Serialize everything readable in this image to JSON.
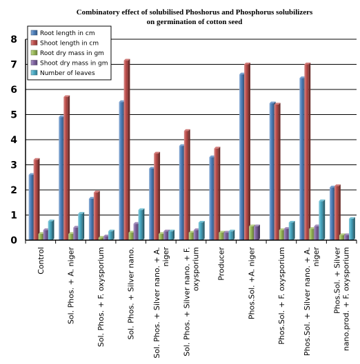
{
  "chart_data": {
    "type": "bar",
    "title": "Combinatory effect of solubilised Phoshorus and Phosphorus solubilizers",
    "subtitle": "on germination of cotton seed",
    "xlabel": "",
    "ylabel": "",
    "ylim": [
      0,
      8
    ],
    "yticks": [
      "0",
      "1",
      "2",
      "3",
      "4",
      "5",
      "6",
      "7",
      "8"
    ],
    "grid": true,
    "legend_position": "top-left",
    "categories": [
      [
        "Control"
      ],
      [
        "Sol. Phos. + A. niger"
      ],
      [
        "Sol. Phos. + F. oxysporium"
      ],
      [
        "Sol. Phos. + Silver nano."
      ],
      [
        "Sol. Phos. + Silver nano. + A.",
        "niger"
      ],
      [
        "Sol. Phos. + Silver nano. + F.",
        "oxysporium"
      ],
      [
        "Producer"
      ],
      [
        "Phos.Sol. +A. niger"
      ],
      [
        "Phos.Sol. + F. oxysporium"
      ],
      [
        "Phos.Sol. + Silver nano. + A.",
        "niger"
      ],
      [
        "Phos.Sol. + Silver",
        "nano.prod. + F. oxysporium"
      ]
    ],
    "series": [
      {
        "name": "Root length in cm",
        "color": "#4f81bd",
        "values": [
          2.6,
          4.9,
          1.65,
          5.5,
          2.85,
          3.75,
          3.3,
          6.6,
          5.45,
          6.45,
          2.1
        ]
      },
      {
        "name": "Shoot length in cm",
        "color": "#c0504d",
        "values": [
          3.2,
          5.7,
          1.9,
          7.15,
          3.45,
          4.35,
          3.65,
          7.0,
          5.4,
          7.0,
          2.15
        ]
      },
      {
        "name": "Root dry mass in gm",
        "color": "#9bbb59",
        "values": [
          0.25,
          0.25,
          0.1,
          0.3,
          0.25,
          0.3,
          0.3,
          0.55,
          0.4,
          0.45,
          0.2
        ]
      },
      {
        "name": "Shoot dry mass in gm",
        "color": "#8064a2",
        "values": [
          0.4,
          0.5,
          0.15,
          0.65,
          0.35,
          0.4,
          0.3,
          0.55,
          0.45,
          0.55,
          0.2
        ]
      },
      {
        "name": "Number of leaves",
        "color": "#4bacc6",
        "values": [
          0.75,
          1.05,
          0.35,
          1.2,
          0.35,
          0.7,
          0.35,
          0.0,
          0.7,
          1.55,
          0.85
        ]
      }
    ]
  }
}
